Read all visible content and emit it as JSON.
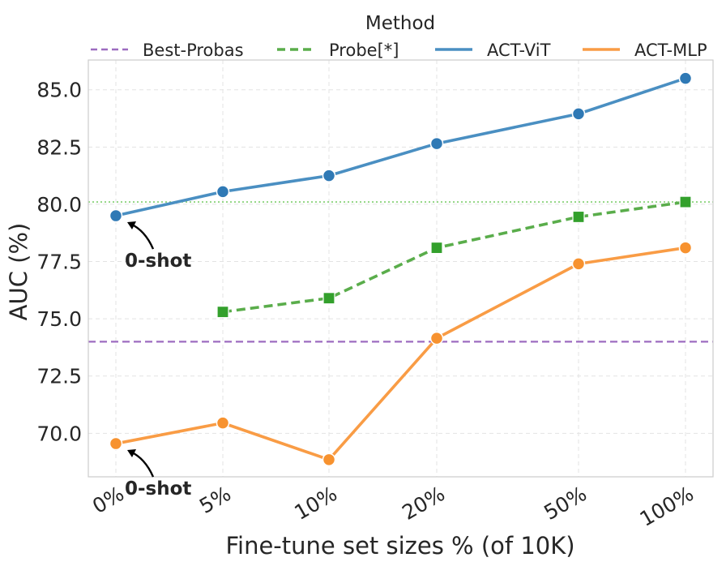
{
  "chart_data": {
    "type": "line",
    "xlabel": "Fine-tune set sizes % (of 10K)",
    "ylabel": "AUC (%)",
    "categories": [
      "0%",
      "5%",
      "10%",
      "20%",
      "50%",
      "100%"
    ],
    "ylim": [
      68.1,
      86.3
    ],
    "yticks": [
      "70.0",
      "72.5",
      "75.0",
      "77.5",
      "80.0",
      "82.5",
      "85.0"
    ],
    "grid": "on",
    "legend": {
      "title": "Method",
      "placement": "top",
      "entries": [
        "Best-Probas",
        "Probe[*]",
        "ACT-ViT",
        "ACT-MLP"
      ]
    },
    "series": [
      {
        "name": "ACT-ViT",
        "style": "solid",
        "marker": "circle",
        "color": "#4a8fc2",
        "marker_color": "#2f79b5",
        "values": [
          79.5,
          80.55,
          81.25,
          82.65,
          83.95,
          85.5
        ]
      },
      {
        "name": "ACT-MLP",
        "style": "solid",
        "marker": "circle",
        "color": "#f99c45",
        "marker_color": "#f7922f",
        "values": [
          69.55,
          70.45,
          68.85,
          74.15,
          77.4,
          78.1
        ]
      },
      {
        "name": "Probe[*]",
        "style": "dashed",
        "marker": "square",
        "color": "#5aad4b",
        "marker_color": "#33a02c",
        "values": [
          null,
          75.3,
          75.9,
          78.1,
          79.45,
          80.1
        ]
      }
    ],
    "reference_lines": [
      {
        "name": "Best-Probas",
        "value": 74.0,
        "style": "dashed",
        "color": "#9d6cc0"
      },
      {
        "value": 80.1,
        "style": "dotted",
        "color": "#7fcf6f"
      }
    ],
    "annotations": [
      {
        "text": "0-shot",
        "series": "ACT-ViT",
        "category": "0%"
      },
      {
        "text": "0-shot",
        "series": "ACT-MLP",
        "category": "0%"
      }
    ]
  }
}
